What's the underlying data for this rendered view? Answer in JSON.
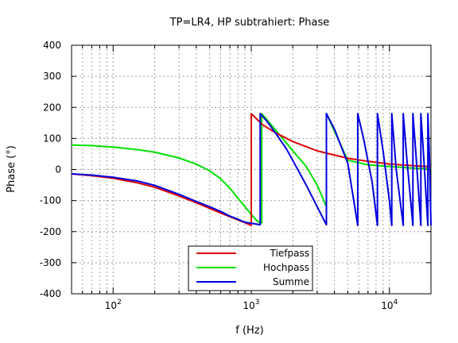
{
  "chart_data": {
    "type": "line",
    "title": "TP=LR4, HP subtrahiert: Phase",
    "xlabel": "f (Hz)",
    "ylabel": "Phase (°)",
    "xscale": "log",
    "xlim": [
      50,
      20000
    ],
    "ylim": [
      -400,
      400
    ],
    "grid": true,
    "legend_position": "bottom-center",
    "xticks": [
      {
        "value": 100,
        "base": "10",
        "exp": "2"
      },
      {
        "value": 1000,
        "base": "10",
        "exp": "3"
      },
      {
        "value": 10000,
        "base": "10",
        "exp": "4"
      }
    ],
    "yticks": [
      -400,
      -300,
      -200,
      -100,
      0,
      100,
      200,
      300,
      400
    ],
    "series": [
      {
        "name": "Tiefpass",
        "color": "#e00000",
        "x": [
          50,
          70,
          100,
          150,
          200,
          300,
          400,
          500,
          600,
          700,
          800,
          900,
          1000,
          1000,
          1200,
          1500,
          2000,
          3000,
          5000,
          7000,
          10000,
          14000,
          20000
        ],
        "y": [
          -14,
          -20,
          -28,
          -43,
          -57,
          -85,
          -107,
          -125,
          -140,
          -152,
          -162,
          -171,
          -180,
          180,
          145,
          118,
          90,
          60,
          36,
          26,
          18,
          13,
          9
        ]
      },
      {
        "name": "Hochpass",
        "color": "#00e000",
        "x": [
          50,
          70,
          100,
          150,
          200,
          300,
          400,
          500,
          600,
          700,
          800,
          900,
          1000,
          1100,
          1160,
          1160,
          1190,
          1190,
          1300,
          1500,
          1800,
          2000,
          2500,
          3000,
          3500,
          3500,
          5000,
          7000,
          10000,
          14000,
          20000
        ],
        "y": [
          79,
          77,
          72,
          64,
          56,
          37,
          17,
          -4,
          -30,
          -60,
          -92,
          -120,
          -145,
          -165,
          -172,
          -172,
          -172,
          180,
          160,
          127,
          85,
          60,
          10,
          -50,
          -120,
          180,
          30,
          15,
          10,
          5,
          2
        ],
        "zorder": "behind"
      },
      {
        "name": "Summe",
        "color": "#0000e0",
        "x": [
          50,
          70,
          100,
          150,
          200,
          300,
          400,
          500,
          600,
          700,
          800,
          900,
          1000,
          1100,
          1160,
          1160,
          1300,
          1500,
          1800,
          2000,
          2500,
          3000,
          3500,
          3500,
          4000,
          5000,
          5900,
          5900,
          6500,
          7500,
          8200,
          8200,
          9000,
          10000,
          10400,
          10400,
          11200,
          12600,
          12600,
          13400,
          14800,
          14800,
          15500,
          16900,
          16900,
          17600,
          19000,
          19000,
          19500,
          20000
        ],
        "y": [
          -14,
          -18,
          -25,
          -37,
          -51,
          -80,
          -103,
          -120,
          -135,
          -150,
          -160,
          -170,
          -173,
          -176,
          -178,
          180,
          155,
          117,
          66,
          29,
          -50,
          -120,
          -178,
          180,
          130,
          20,
          -180,
          180,
          100,
          -40,
          -180,
          180,
          60,
          -100,
          -180,
          180,
          0,
          -180,
          180,
          30,
          -180,
          180,
          60,
          -180,
          180,
          60,
          -180,
          180,
          40,
          -180
        ]
      }
    ]
  }
}
